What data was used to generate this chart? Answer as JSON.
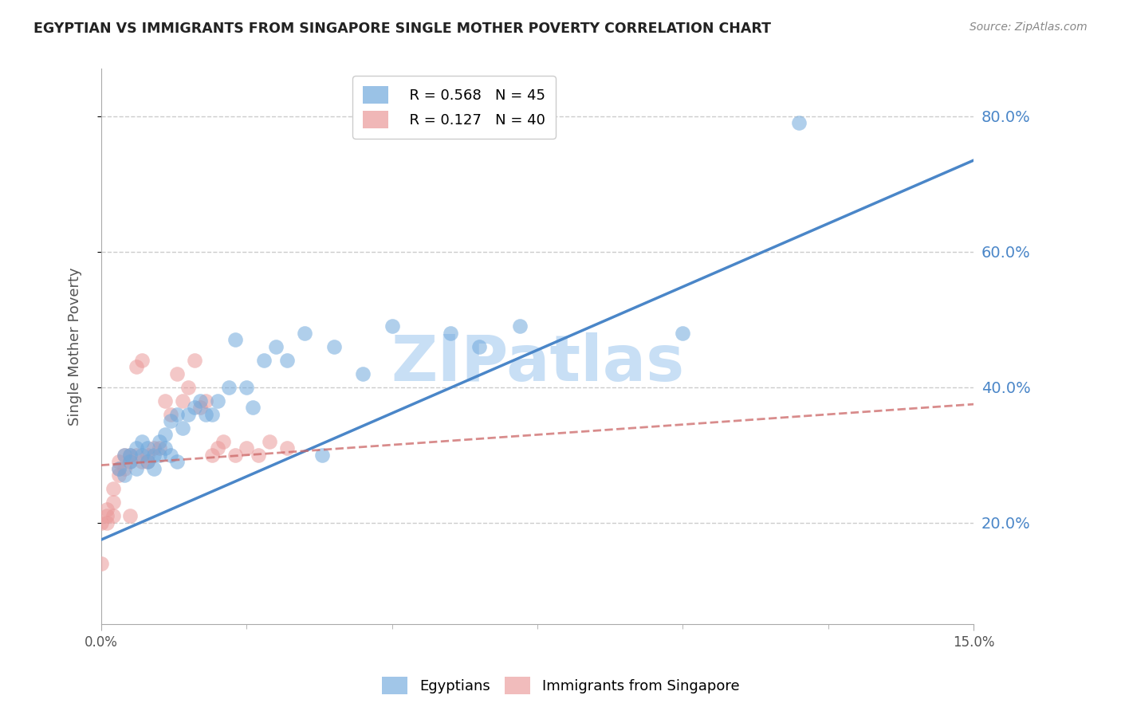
{
  "title": "EGYPTIAN VS IMMIGRANTS FROM SINGAPORE SINGLE MOTHER POVERTY CORRELATION CHART",
  "source": "Source: ZipAtlas.com",
  "ylabel": "Single Mother Poverty",
  "yticks": [
    0.2,
    0.4,
    0.6,
    0.8
  ],
  "ytick_labels": [
    "20.0%",
    "40.0%",
    "60.0%",
    "80.0%"
  ],
  "xmin": 0.0,
  "xmax": 0.15,
  "ymin": 0.05,
  "ymax": 0.87,
  "legend_r1": "R = 0.568",
  "legend_n1": "N = 45",
  "legend_r2": "R = 0.127",
  "legend_n2": "N = 40",
  "blue_color": "#6fa8dc",
  "pink_color": "#ea9999",
  "blue_line_color": "#4a86c8",
  "pink_line_color": "#cc6666",
  "grid_color": "#cccccc",
  "watermark": "ZIPatlas",
  "watermark_color": "#c8dff5",
  "blue_scatter_x": [
    0.003,
    0.004,
    0.004,
    0.005,
    0.005,
    0.006,
    0.006,
    0.007,
    0.007,
    0.008,
    0.008,
    0.009,
    0.009,
    0.01,
    0.01,
    0.011,
    0.011,
    0.012,
    0.012,
    0.013,
    0.013,
    0.014,
    0.015,
    0.016,
    0.017,
    0.018,
    0.019,
    0.02,
    0.022,
    0.023,
    0.025,
    0.026,
    0.028,
    0.03,
    0.032,
    0.035,
    0.038,
    0.04,
    0.045,
    0.05,
    0.06,
    0.065,
    0.072,
    0.1,
    0.12
  ],
  "blue_scatter_y": [
    0.28,
    0.27,
    0.3,
    0.29,
    0.3,
    0.28,
    0.31,
    0.3,
    0.32,
    0.29,
    0.31,
    0.28,
    0.3,
    0.3,
    0.32,
    0.31,
    0.33,
    0.3,
    0.35,
    0.29,
    0.36,
    0.34,
    0.36,
    0.37,
    0.38,
    0.36,
    0.36,
    0.38,
    0.4,
    0.47,
    0.4,
    0.37,
    0.44,
    0.46,
    0.44,
    0.48,
    0.3,
    0.46,
    0.42,
    0.49,
    0.48,
    0.46,
    0.49,
    0.48,
    0.79
  ],
  "pink_scatter_x": [
    0.0,
    0.0,
    0.001,
    0.001,
    0.001,
    0.002,
    0.002,
    0.002,
    0.003,
    0.003,
    0.003,
    0.004,
    0.004,
    0.005,
    0.005,
    0.005,
    0.006,
    0.006,
    0.007,
    0.007,
    0.008,
    0.008,
    0.009,
    0.01,
    0.011,
    0.012,
    0.013,
    0.014,
    0.015,
    0.016,
    0.017,
    0.018,
    0.019,
    0.02,
    0.021,
    0.023,
    0.025,
    0.027,
    0.029,
    0.032
  ],
  "pink_scatter_y": [
    0.14,
    0.2,
    0.2,
    0.21,
    0.22,
    0.21,
    0.23,
    0.25,
    0.27,
    0.28,
    0.29,
    0.28,
    0.3,
    0.21,
    0.29,
    0.3,
    0.3,
    0.43,
    0.29,
    0.44,
    0.29,
    0.3,
    0.31,
    0.31,
    0.38,
    0.36,
    0.42,
    0.38,
    0.4,
    0.44,
    0.37,
    0.38,
    0.3,
    0.31,
    0.32,
    0.3,
    0.31,
    0.3,
    0.32,
    0.31
  ],
  "blue_line_x": [
    0.0,
    0.15
  ],
  "blue_line_y": [
    0.175,
    0.735
  ],
  "pink_line_x": [
    0.0,
    0.15
  ],
  "pink_line_y": [
    0.285,
    0.375
  ]
}
